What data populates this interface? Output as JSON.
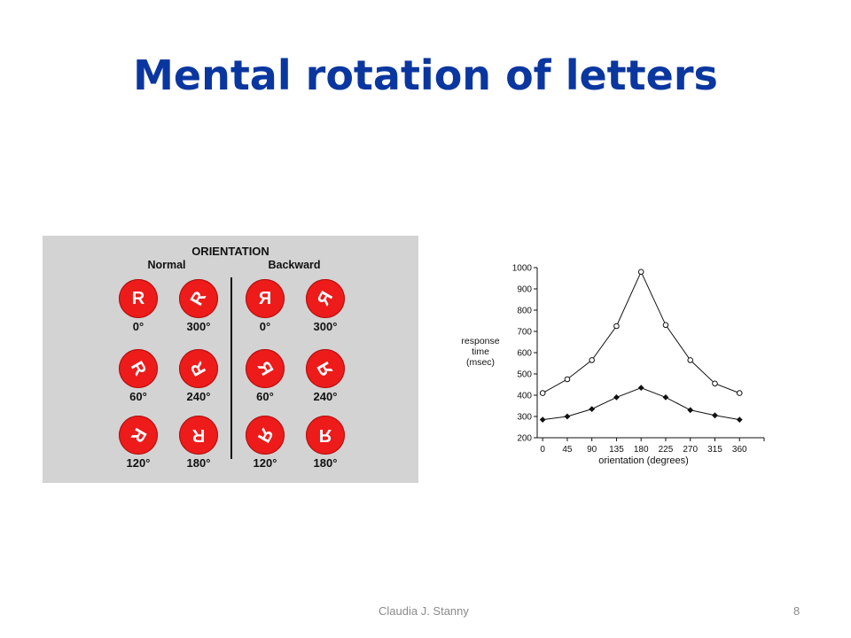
{
  "slide": {
    "title": "Mental rotation of letters",
    "footer_author": "Claudia J. Stanny",
    "page_number": "8"
  },
  "figure": {
    "header": "ORIENTATION",
    "groups": [
      {
        "label": "Normal"
      },
      {
        "label": "Backward"
      }
    ],
    "letter": "R",
    "cells": [
      {
        "group": "normal",
        "deg": "0°",
        "rot": 0,
        "mirror": false
      },
      {
        "group": "normal",
        "deg": "300°",
        "rot": 300,
        "mirror": false
      },
      {
        "group": "backward",
        "deg": "0°",
        "rot": 0,
        "mirror": true
      },
      {
        "group": "backward",
        "deg": "300°",
        "rot": 300,
        "mirror": true
      },
      {
        "group": "normal",
        "deg": "60°",
        "rot": 60,
        "mirror": false
      },
      {
        "group": "normal",
        "deg": "240°",
        "rot": 240,
        "mirror": false
      },
      {
        "group": "backward",
        "deg": "60°",
        "rot": 60,
        "mirror": true
      },
      {
        "group": "backward",
        "deg": "240°",
        "rot": 240,
        "mirror": true
      },
      {
        "group": "normal",
        "deg": "120°",
        "rot": 120,
        "mirror": false
      },
      {
        "group": "normal",
        "deg": "180°",
        "rot": 180,
        "mirror": false
      },
      {
        "group": "backward",
        "deg": "120°",
        "rot": 120,
        "mirror": true
      },
      {
        "group": "backward",
        "deg": "180°",
        "rot": 180,
        "mirror": true
      }
    ],
    "circle_color": "#ee1b1b",
    "panel_color": "#d3d3d3"
  },
  "chart_data": {
    "type": "line",
    "title": "",
    "xlabel": "orientation (degrees)",
    "ylabel_lines": [
      "response",
      "time",
      "(msec)"
    ],
    "x": [
      0,
      45,
      90,
      135,
      180,
      225,
      270,
      315,
      360
    ],
    "xlim": [
      -10,
      405
    ],
    "ylim": [
      200,
      1000
    ],
    "yticks": [
      200,
      300,
      400,
      500,
      600,
      700,
      800,
      900,
      1000
    ],
    "grid": false,
    "series": [
      {
        "marker": "open-circle",
        "values": [
          410,
          475,
          565,
          725,
          980,
          730,
          565,
          455,
          410
        ]
      },
      {
        "marker": "filled-diamond",
        "values": [
          285,
          300,
          335,
          390,
          435,
          390,
          330,
          305,
          285
        ]
      }
    ]
  }
}
